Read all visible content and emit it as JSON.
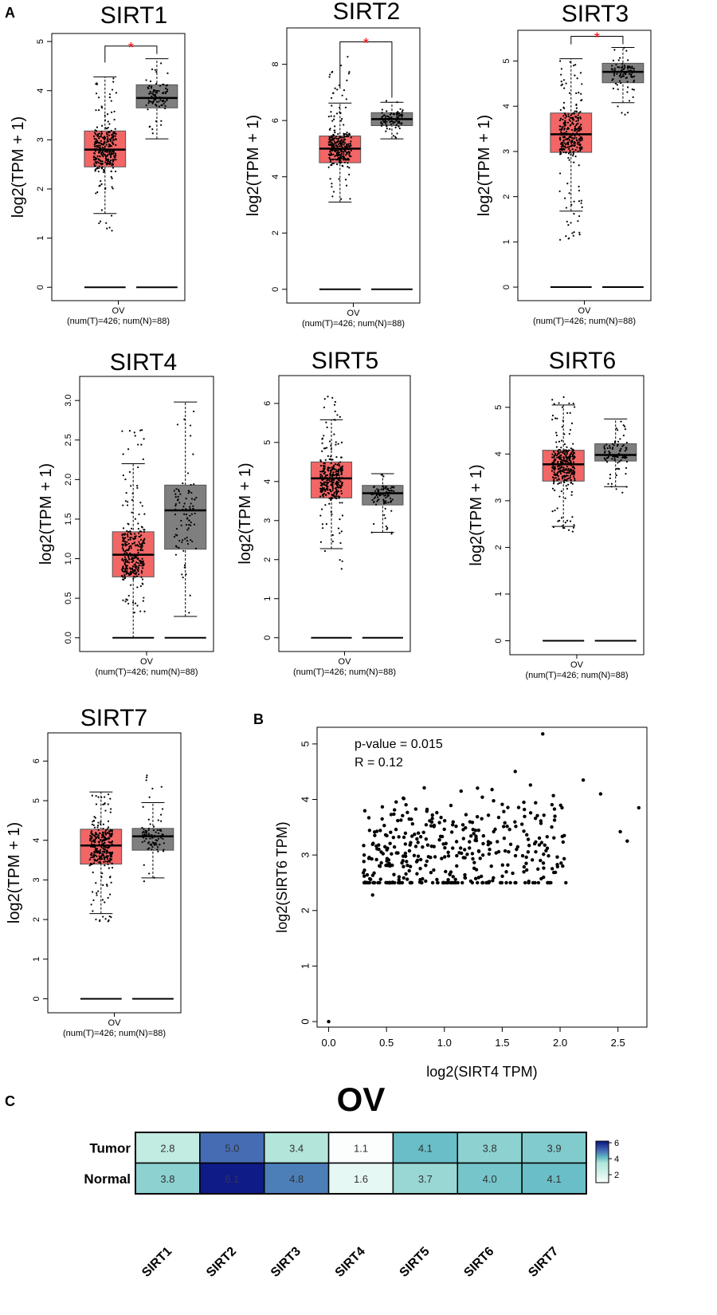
{
  "panel_labels": [
    "A",
    "B",
    "C"
  ],
  "colors": {
    "tumor": "#f26666",
    "normal": "#7f7f7f",
    "sig": "#ff0000"
  },
  "chart_data": [
    {
      "type": "boxplot",
      "title": "SIRT1",
      "ylabel": "log2(TPM + 1)",
      "yticks": [
        0,
        1,
        2,
        3,
        4,
        5
      ],
      "ylim": [
        0,
        5
      ],
      "xlabel": "OV",
      "xsub": "(num(T)=426; num(N)=88)",
      "sig": "*",
      "tumor": {
        "min": 1.5,
        "q1": 2.45,
        "median": 2.8,
        "q3": 3.18,
        "max": 4.28,
        "n": 426,
        "lo": 1.15,
        "hi": 4.3
      },
      "normal": {
        "min": 3.02,
        "q1": 3.65,
        "median": 3.85,
        "q3": 4.12,
        "max": 4.65,
        "n": 88,
        "lo": 3.02,
        "hi": 4.68
      }
    },
    {
      "type": "boxplot",
      "title": "SIRT2",
      "ylabel": "log2(TPM + 1)",
      "yticks": [
        0,
        2,
        4,
        6,
        8
      ],
      "ylim": [
        0,
        9
      ],
      "xlabel": "OV",
      "xsub": "(num(T)=426; num(N)=88)",
      "sig": "*",
      "tumor": {
        "min": 3.1,
        "q1": 4.5,
        "median": 5.0,
        "q3": 5.45,
        "max": 6.62,
        "n": 426,
        "lo": 3.1,
        "hi": 8.4
      },
      "normal": {
        "min": 5.35,
        "q1": 5.82,
        "median": 6.05,
        "q3": 6.28,
        "max": 6.65,
        "n": 88,
        "lo": 5.3,
        "hi": 6.7
      }
    },
    {
      "type": "boxplot",
      "title": "SIRT3",
      "ylabel": "log2(TPM + 1)",
      "yticks": [
        0,
        1,
        2,
        3,
        4,
        5
      ],
      "ylim": [
        0,
        5.5
      ],
      "xlabel": "OV",
      "xsub": "(num(T)=426; num(N)=88)",
      "sig": "*",
      "tumor": {
        "min": 1.68,
        "q1": 2.98,
        "median": 3.38,
        "q3": 3.85,
        "max": 5.05,
        "n": 426,
        "lo": 1.0,
        "hi": 5.05
      },
      "normal": {
        "min": 4.08,
        "q1": 4.52,
        "median": 4.76,
        "q3": 4.95,
        "max": 5.3,
        "n": 88,
        "lo": 3.8,
        "hi": 5.3
      }
    },
    {
      "type": "boxplot",
      "title": "SIRT4",
      "ylabel": "log2(TPM + 1)",
      "yticks": [
        "0.0",
        "0.5",
        "1.0",
        "1.5",
        "2.0",
        "2.5",
        "3.0"
      ],
      "ylim": [
        0,
        3.2
      ],
      "xlabel": "OV",
      "xsub": "(num(T)=426; num(N)=88)",
      "sig": "",
      "tumor": {
        "min": 0.0,
        "q1": 0.77,
        "median": 1.05,
        "q3": 1.34,
        "max": 2.2,
        "n": 426,
        "lo": 0.3,
        "hi": 2.68
      },
      "normal": {
        "min": 0.27,
        "q1": 1.12,
        "median": 1.61,
        "q3": 1.93,
        "max": 2.98,
        "n": 88,
        "lo": 0.27,
        "hi": 2.98
      }
    },
    {
      "type": "boxplot",
      "title": "SIRT5",
      "ylabel": "log2(TPM + 1)",
      "yticks": [
        0,
        1,
        2,
        3,
        4,
        5,
        6
      ],
      "ylim": [
        0,
        6.5
      ],
      "xlabel": "OV",
      "xsub": "(num(T)=426; num(N)=88)",
      "sig": "",
      "tumor": {
        "min": 2.28,
        "q1": 3.58,
        "median": 4.08,
        "q3": 4.5,
        "max": 5.58,
        "n": 426,
        "lo": 1.65,
        "hi": 6.2
      },
      "normal": {
        "min": 2.7,
        "q1": 3.4,
        "median": 3.7,
        "q3": 3.9,
        "max": 4.2,
        "n": 88,
        "lo": 2.55,
        "hi": 4.2
      }
    },
    {
      "type": "boxplot",
      "title": "SIRT6",
      "ylabel": "log2(TPM + 1)",
      "yticks": [
        0,
        1,
        2,
        3,
        4,
        5
      ],
      "ylim": [
        0,
        5.5
      ],
      "xlabel": "OV",
      "xsub": "(num(T)=426; num(N)=88)",
      "sig": "",
      "tumor": {
        "min": 2.45,
        "q1": 3.42,
        "median": 3.78,
        "q3": 4.08,
        "max": 5.05,
        "n": 426,
        "lo": 2.3,
        "hi": 5.25
      },
      "normal": {
        "min": 3.3,
        "q1": 3.85,
        "median": 3.98,
        "q3": 4.22,
        "max": 4.75,
        "n": 88,
        "lo": 3.15,
        "hi": 4.75
      }
    },
    {
      "type": "boxplot",
      "title": "SIRT7",
      "ylabel": "log2(TPM + 1)",
      "yticks": [
        0,
        1,
        2,
        3,
        4,
        5,
        6
      ],
      "ylim": [
        0,
        6.5
      ],
      "xlabel": "OV",
      "xsub": "(num(T)=426; num(N)=88)",
      "sig": "",
      "tumor": {
        "min": 2.15,
        "q1": 3.4,
        "median": 3.87,
        "q3": 4.28,
        "max": 5.22,
        "n": 426,
        "lo": 1.95,
        "hi": 5.25
      },
      "normal": {
        "min": 3.05,
        "q1": 3.75,
        "median": 4.1,
        "q3": 4.3,
        "max": 4.95,
        "n": 88,
        "lo": 2.95,
        "hi": 5.95
      }
    },
    {
      "type": "scatter",
      "xlabel": "log2(SIRT4 TPM)",
      "ylabel": "log2(SIRT6 TPM)",
      "xticks": [
        "0.0",
        "0.5",
        "1.0",
        "1.5",
        "2.0",
        "2.5"
      ],
      "yticks": [
        0,
        1,
        2,
        3,
        4,
        5
      ],
      "xlim": [
        -0.1,
        2.75
      ],
      "ylim": [
        -0.1,
        5.3
      ],
      "annotations": [
        "p-value = 0.015",
        "R = 0.12"
      ],
      "n": 426,
      "outliers": [
        [
          0.0,
          0.0
        ],
        [
          0.38,
          2.28
        ],
        [
          2.68,
          3.85
        ],
        [
          2.58,
          3.25
        ],
        [
          2.52,
          3.42
        ],
        [
          2.35,
          4.1
        ],
        [
          2.2,
          4.35
        ],
        [
          1.85,
          5.18
        ],
        [
          1.83,
          2.9
        ]
      ]
    },
    {
      "type": "heatmap",
      "title": "OV",
      "rows": [
        "Tumor",
        "Normal"
      ],
      "columns": [
        "SIRT1",
        "SIRT2",
        "SIRT3",
        "SIRT4",
        "SIRT5",
        "SIRT6",
        "SIRT7"
      ],
      "values": [
        [
          2.8,
          5.0,
          3.4,
          1.1,
          4.1,
          3.8,
          3.9
        ],
        [
          3.8,
          6.1,
          4.8,
          1.6,
          3.7,
          4.0,
          4.1
        ]
      ],
      "labels": [
        [
          "2.8",
          "5.0",
          "3.4",
          "1.1",
          "4.1",
          "3.8",
          "3.9"
        ],
        [
          "3.8",
          "6.1",
          "4.8",
          "1.6",
          "3.7",
          "4.0",
          "4.1"
        ]
      ],
      "colorbar_ticks": [
        "6",
        "4",
        "2"
      ],
      "range": [
        1,
        6.2
      ]
    }
  ]
}
